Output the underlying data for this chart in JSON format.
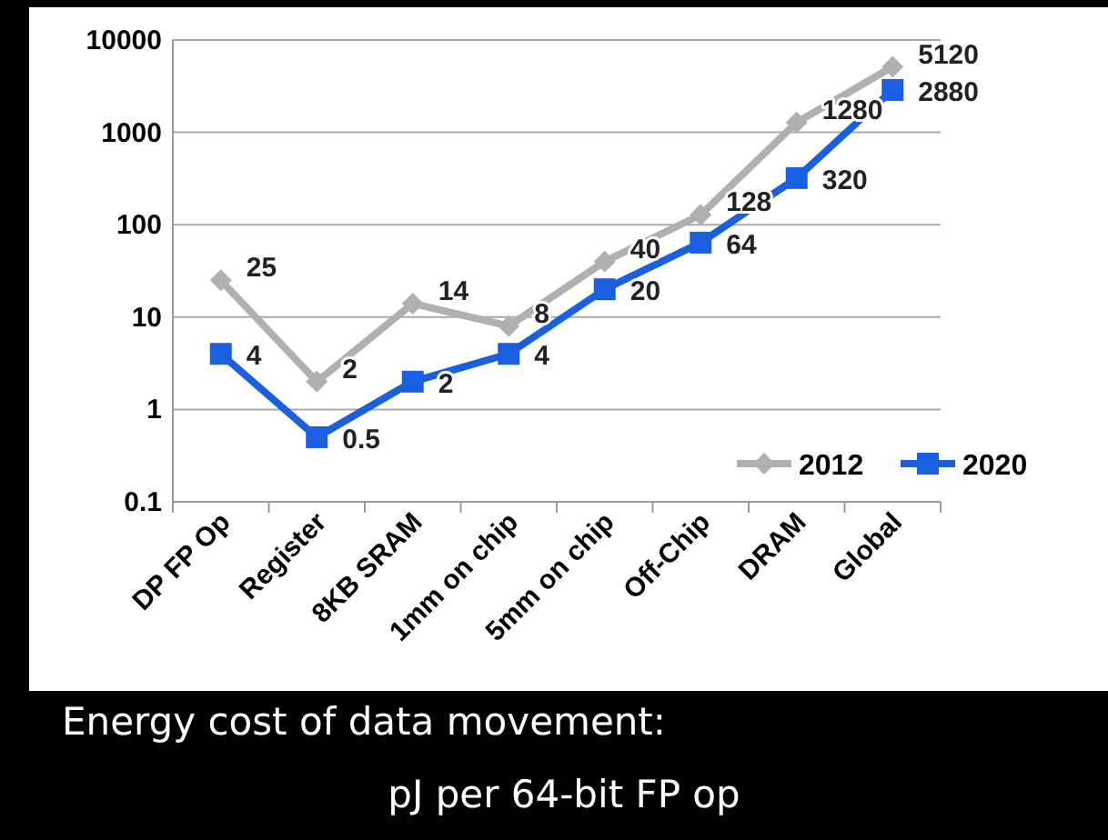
{
  "chart_data": {
    "type": "line",
    "categories": [
      "DP FP Op",
      "Register",
      "8KB SRAM",
      "1mm on chip",
      "5mm on chip",
      "Off-Chip",
      "DRAM",
      "Global"
    ],
    "series": [
      {
        "name": "2012",
        "color": "#b0b0b0",
        "marker": "diamond",
        "values": [
          25,
          2,
          14,
          8,
          40,
          128,
          1280,
          5120
        ]
      },
      {
        "name": "2020",
        "color": "#1a5fe0",
        "marker": "square",
        "values": [
          4,
          0.5,
          2,
          4,
          20,
          64,
          320,
          2880
        ]
      }
    ],
    "log": true,
    "ylim": [
      0.1,
      10000
    ],
    "yticks": [
      0.1,
      1,
      10,
      100,
      1000,
      10000
    ],
    "grid": "y",
    "legend": "bottom right",
    "data_labels": true,
    "annotations": [
      "Energy cost of data movement:",
      "pJ per 64-bit FP op"
    ]
  }
}
